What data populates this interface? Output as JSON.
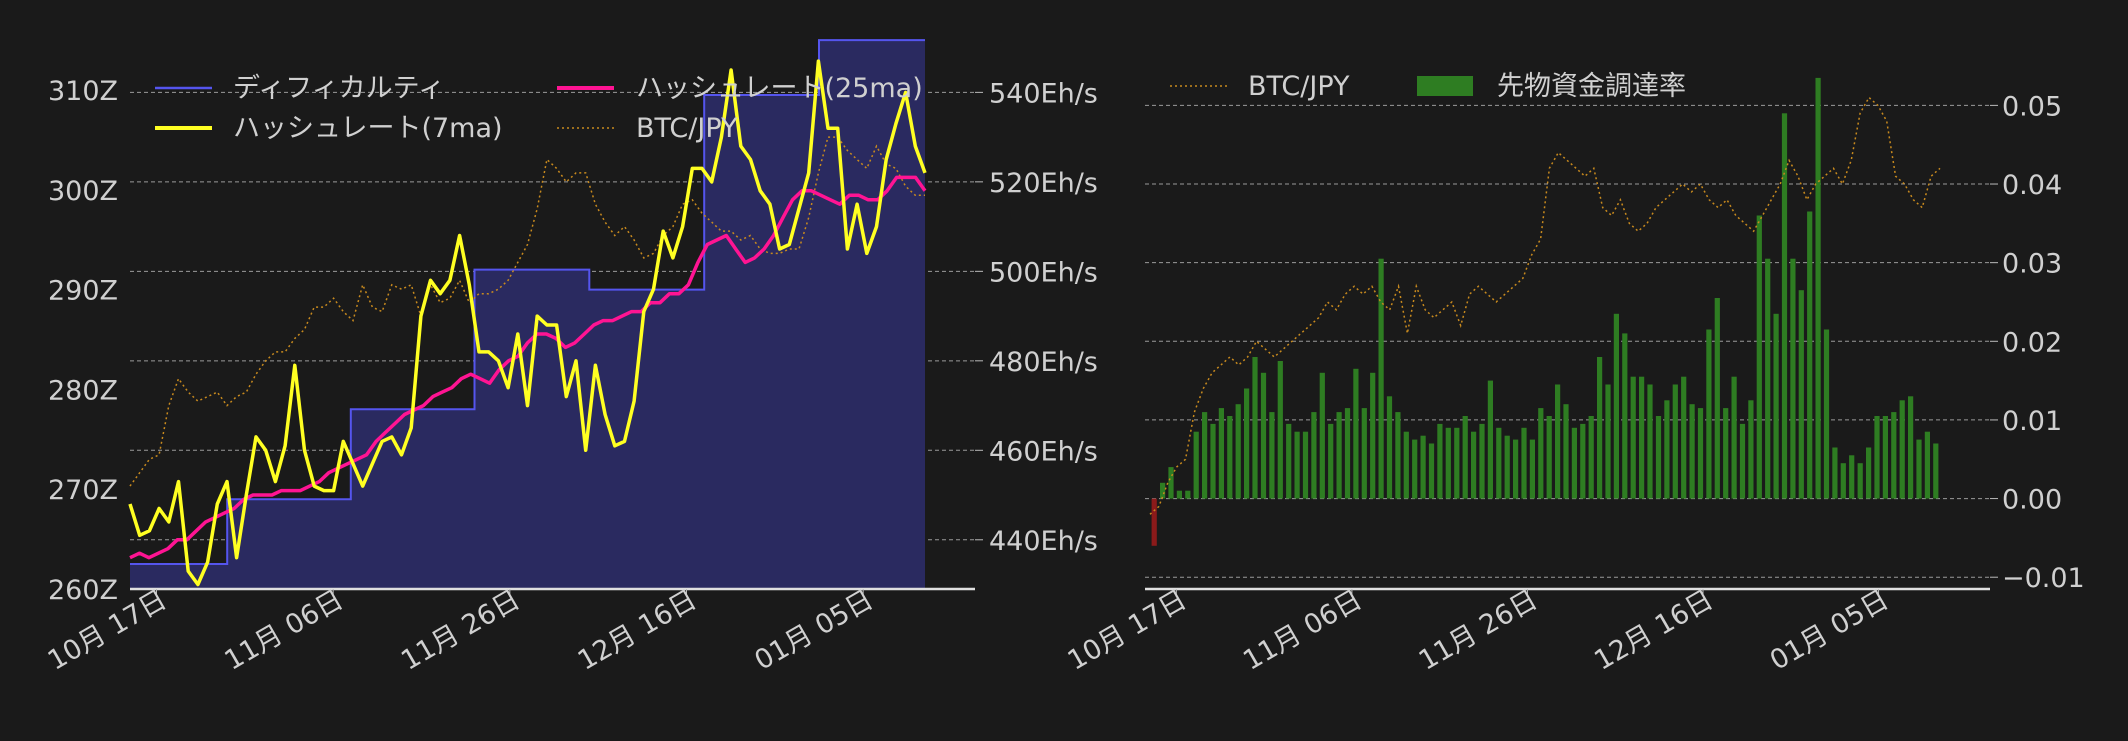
{
  "colors": {
    "background": "#1a1a1a",
    "difficulty_line": "#5555ee",
    "difficulty_fill": "#2a2a60",
    "hashrate_7ma": "#ffff22",
    "hashrate_25ma": "#ff1493",
    "btc_jpy": "#c88a1e",
    "funding_positive": "#2e7d22",
    "funding_negative": "#8b1a1a",
    "grid": "#bbbbbb",
    "text": "#d0d0d0"
  },
  "chart_data": [
    {
      "type": "line",
      "x_start": "2024-10-14",
      "x_end": "2025-01-12",
      "x_ticks": [
        "10月 17日",
        "11月 06日",
        "11月 26日",
        "12月 16日",
        "01月 05日"
      ],
      "x_tick_dates": [
        "2024-10-17",
        "2024-11-06",
        "2024-11-26",
        "2024-12-16",
        "2025-01-05"
      ],
      "y_left": {
        "ticks": [
          "260Z",
          "270Z",
          "280Z",
          "290Z",
          "300Z",
          "310Z"
        ],
        "tick_values": [
          260,
          270,
          280,
          290,
          300,
          310
        ],
        "range": [
          260,
          312
        ]
      },
      "y_right": {
        "ticks": [
          "440Eh/s",
          "460Eh/s",
          "480Eh/s",
          "500Eh/s",
          "520Eh/s",
          "540Eh/s"
        ],
        "tick_values": [
          440,
          460,
          480,
          500,
          520,
          540
        ],
        "range": [
          429,
          545
        ]
      },
      "grid": true,
      "legend_position": "top",
      "legend": [
        "ディフィカルティ",
        "ハッシュレート(7ma)",
        "ハッシュレート(25ma)",
        "BTC/JPY"
      ],
      "series": [
        {
          "name": "ディフィカルティ",
          "kind": "step-area",
          "axis": "left",
          "steps": [
            {
              "date": "2024-10-14",
              "value": 262.5
            },
            {
              "date": "2024-10-25",
              "value": 269
            },
            {
              "date": "2024-11-08",
              "value": 278
            },
            {
              "date": "2024-11-22",
              "value": 292
            },
            {
              "date": "2024-12-05",
              "value": 290
            },
            {
              "date": "2024-12-18",
              "value": 309.5
            },
            {
              "date": "2024-12-31",
              "value": 315
            },
            {
              "date": "2025-01-12",
              "value": 315
            }
          ]
        },
        {
          "name": "ハッシュレート(7ma)",
          "axis": "right",
          "values": [
            448,
            441,
            442,
            447,
            444,
            453,
            433,
            430,
            435,
            448,
            453,
            436,
            450,
            463,
            460,
            453,
            461,
            479,
            460,
            452,
            451,
            451,
            462,
            457,
            452,
            457,
            462,
            463,
            459,
            465,
            490,
            498,
            495,
            498,
            508,
            497,
            482,
            482,
            480,
            474,
            486,
            470,
            490,
            488,
            488,
            472,
            480,
            460,
            479,
            468,
            461,
            462,
            471,
            491,
            496,
            509,
            503,
            510,
            523,
            523,
            520,
            530,
            545,
            528,
            525,
            518,
            515,
            505,
            506,
            514,
            522,
            547,
            532,
            532,
            505,
            515,
            504,
            510,
            525,
            533,
            540,
            528,
            522
          ]
        },
        {
          "name": "ハッシュレート(25ma)",
          "axis": "right",
          "values": [
            436,
            437,
            436,
            437,
            438,
            440,
            440,
            442,
            444,
            445,
            446,
            447,
            449,
            450,
            450,
            450,
            451,
            451,
            451,
            452,
            453,
            455,
            456,
            457,
            458,
            459,
            462,
            464,
            466,
            468,
            469,
            470,
            472,
            473,
            474,
            476,
            477,
            476,
            475,
            478,
            480,
            481,
            484,
            486,
            486,
            485,
            483,
            484,
            486,
            488,
            489,
            489,
            490,
            491,
            491,
            493,
            493,
            495,
            495,
            497,
            502,
            506,
            507,
            508,
            505,
            502,
            503,
            505,
            508,
            512,
            516,
            518,
            518,
            517,
            516,
            515,
            517,
            517,
            516,
            516,
            518,
            521,
            521,
            521,
            518
          ]
        },
        {
          "name": "BTC/JPY",
          "axis": "right-hidden",
          "values": [
            452,
            455,
            458,
            459,
            470,
            476,
            473,
            471,
            472,
            473,
            470,
            472,
            473,
            477,
            480,
            482,
            482,
            485,
            487,
            492,
            492,
            494,
            491,
            489,
            497,
            492,
            491,
            497,
            496,
            497,
            490,
            497,
            493,
            494,
            498,
            493,
            495,
            495,
            496,
            498,
            502,
            506,
            514,
            525,
            523,
            520,
            522,
            522,
            515,
            511,
            508,
            510,
            507,
            503,
            504,
            508,
            510,
            515,
            516,
            513,
            511,
            509,
            509,
            507,
            508,
            505,
            504,
            504,
            505,
            505,
            512,
            522,
            530,
            530,
            527,
            525,
            523,
            528,
            524,
            523,
            519,
            517,
            517
          ]
        }
      ]
    },
    {
      "type": "bar",
      "x_start": "2024-10-14",
      "x_end": "2025-01-12",
      "x_ticks": [
        "10月 17日",
        "11月 06日",
        "11月 26日",
        "12月 16日",
        "01月 05日"
      ],
      "x_tick_dates": [
        "2024-10-17",
        "2024-11-06",
        "2024-11-26",
        "2024-12-16",
        "2025-01-05"
      ],
      "y_right": {
        "ticks": [
          "−0.01",
          "0.00",
          "0.01",
          "0.02",
          "0.03",
          "0.04",
          "0.05"
        ],
        "tick_values": [
          -0.01,
          0,
          0.01,
          0.02,
          0.03,
          0.04,
          0.05
        ],
        "range": [
          -0.0115,
          0.0545
        ]
      },
      "grid": true,
      "legend_position": "top-left",
      "legend": [
        "BTC/JPY",
        "先物資金調達率"
      ],
      "series": [
        {
          "name": "BTC/JPY",
          "kind": "line",
          "axis": "hidden",
          "values": [
            -0.002,
            -0.001,
            0.002,
            0.004,
            0.005,
            0.011,
            0.014,
            0.016,
            0.017,
            0.018,
            0.017,
            0.018,
            0.02,
            0.019,
            0.018,
            0.019,
            0.02,
            0.021,
            0.022,
            0.023,
            0.025,
            0.024,
            0.026,
            0.027,
            0.026,
            0.027,
            0.025,
            0.024,
            0.027,
            0.021,
            0.027,
            0.024,
            0.023,
            0.024,
            0.025,
            0.022,
            0.026,
            0.027,
            0.026,
            0.025,
            0.026,
            0.027,
            0.028,
            0.031,
            0.033,
            0.042,
            0.044,
            0.043,
            0.042,
            0.041,
            0.042,
            0.037,
            0.036,
            0.038,
            0.035,
            0.034,
            0.035,
            0.037,
            0.038,
            0.039,
            0.04,
            0.039,
            0.04,
            0.038,
            0.037,
            0.038,
            0.036,
            0.035,
            0.034,
            0.036,
            0.038,
            0.04,
            0.043,
            0.041,
            0.038,
            0.04,
            0.041,
            0.042,
            0.04,
            0.043,
            0.049,
            0.051,
            0.05,
            0.048,
            0.041,
            0.04,
            0.038,
            0.037,
            0.041,
            0.042
          ]
        },
        {
          "name": "先物資金調達率",
          "kind": "bar",
          "axis": "right",
          "values": [
            -0.006,
            0.002,
            0.004,
            0.001,
            0.001,
            0.0085,
            0.011,
            0.0095,
            0.0115,
            0.0105,
            0.012,
            0.014,
            0.018,
            0.016,
            0.011,
            0.0175,
            0.0095,
            0.0085,
            0.0085,
            0.011,
            0.016,
            0.0095,
            0.011,
            0.0115,
            0.0165,
            0.0115,
            0.016,
            0.0305,
            0.013,
            0.011,
            0.0085,
            0.0075,
            0.008,
            0.007,
            0.0095,
            0.009,
            0.009,
            0.0105,
            0.0085,
            0.0095,
            0.015,
            0.009,
            0.008,
            0.0075,
            0.009,
            0.0075,
            0.0115,
            0.0105,
            0.0145,
            0.012,
            0.009,
            0.0095,
            0.0105,
            0.018,
            0.0145,
            0.0235,
            0.021,
            0.0155,
            0.0155,
            0.0145,
            0.0105,
            0.0125,
            0.0145,
            0.0155,
            0.012,
            0.0115,
            0.0215,
            0.0255,
            0.0115,
            0.0155,
            0.0095,
            0.0125,
            0.036,
            0.0305,
            0.0235,
            0.049,
            0.0305,
            0.0265,
            0.0365,
            0.0535,
            0.0215,
            0.0065,
            0.0045,
            0.0055,
            0.0045,
            0.0065,
            0.0105,
            0.0105,
            0.011,
            0.0125,
            0.013,
            0.0075,
            0.0085,
            0.007
          ]
        }
      ]
    }
  ]
}
